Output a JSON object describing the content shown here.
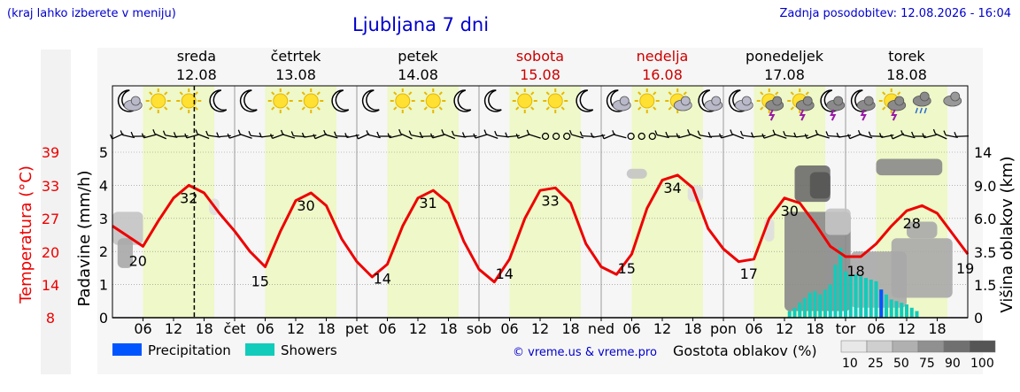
{
  "header": {
    "left_note": "(kraj lahko izberete v meniju)",
    "title": "Ljubljana 7 dni",
    "updated": "Zadnja posodobitev: 12.08.2026 - 16:04"
  },
  "colors": {
    "temperature": "#ee0000",
    "precipitation": "#0055ff",
    "showers": "#11ccbb",
    "day_band": "#eef8c8",
    "weekend_label": "#cc0000",
    "credit": "#0000cc"
  },
  "days": [
    {
      "name": "sreda",
      "date": "12.08",
      "abbr": "",
      "weekend": false
    },
    {
      "name": "četrtek",
      "date": "13.08",
      "abbr": "čet",
      "weekend": false
    },
    {
      "name": "petek",
      "date": "14.08",
      "abbr": "pet",
      "weekend": false
    },
    {
      "name": "sobota",
      "date": "15.08",
      "abbr": "sob",
      "weekend": true
    },
    {
      "name": "nedelja",
      "date": "16.08",
      "abbr": "ned",
      "weekend": true
    },
    {
      "name": "ponedeljek",
      "date": "17.08",
      "abbr": "pon",
      "weekend": false
    },
    {
      "name": "torek",
      "date": "18.08",
      "abbr": "tor",
      "weekend": false
    }
  ],
  "icons": [
    "moon-cloud-icon",
    "sun-icon",
    "sun-icon",
    "moon-icon",
    "moon-icon",
    "sun-icon",
    "sun-icon",
    "moon-icon",
    "moon-icon",
    "sun-icon",
    "sun-icon",
    "moon-icon",
    "moon-icon",
    "sun-icon",
    "sun-icon",
    "moon-icon",
    "moon-cloud-icon",
    "sun-icon",
    "sun-cloud-icon",
    "moon-cloud-icon",
    "moon-cloud-icon",
    "sun-storm-icon",
    "sun-storm-icon",
    "moon-storm-icon",
    "moon-storm-icon",
    "sun-storm-icon",
    "cloud-rain-icon",
    "cloud-icon"
  ],
  "wind_markers": [
    "barb",
    "barb",
    "barb",
    "barb",
    "barb",
    "barb",
    "barb",
    "barb",
    "barb",
    "barb",
    "barb",
    "barb",
    "barb",
    "barb",
    "barb",
    "barb",
    "barb",
    "barb",
    "barb",
    "barb",
    "barb",
    "barb",
    "barb",
    "barb",
    "barb",
    "barb",
    "barb",
    "barb",
    "barb",
    "barb",
    "barb",
    "barb",
    "barb",
    "barb",
    "barb",
    "barb",
    "barb",
    "barb",
    "barb",
    "barb",
    "calm",
    "calm",
    "calm",
    "barb",
    "barb",
    "barb",
    "barb",
    "barb",
    "calm",
    "calm",
    "calm",
    "barb",
    "barb",
    "barb",
    "barb",
    "barb",
    "barb",
    "barb",
    "barb",
    "barb",
    "barb",
    "barb",
    "barb",
    "barb",
    "barb",
    "barb",
    "barb",
    "barb",
    "barb",
    "barb",
    "barb",
    "barb",
    "barb",
    "barb",
    "barb",
    "barb",
    "barb",
    "barb",
    "barb",
    "barb"
  ],
  "chart_data": {
    "type": "line",
    "x_unit": "hours from 12.08 00:00",
    "xlim": [
      0,
      168
    ],
    "x_ticks": [
      6,
      12,
      18,
      24,
      30,
      36,
      42,
      48,
      54,
      60,
      66,
      72,
      78,
      84,
      90,
      96,
      102,
      108,
      114,
      120,
      126,
      132,
      138,
      144,
      150,
      156,
      162
    ],
    "x_tick_labels": [
      "06",
      "12",
      "18",
      "čet",
      "06",
      "12",
      "18",
      "pet",
      "06",
      "12",
      "18",
      "sob",
      "06",
      "12",
      "18",
      "ned",
      "06",
      "12",
      "18",
      "pon",
      "06",
      "12",
      "18",
      "tor",
      "06",
      "12",
      "18"
    ],
    "left_axis": {
      "label": "Padavine (mm/h)",
      "ylim": [
        0,
        5
      ],
      "ticks": [
        0,
        1,
        2,
        3,
        4,
        5
      ]
    },
    "temp_axis": {
      "label": "Temperatura (°C)",
      "ticks": [
        8,
        14,
        20,
        27,
        33,
        39
      ]
    },
    "right_axis": {
      "label": "Višina oblakov (km)",
      "ticks": [
        "0",
        "1.5",
        "3.5",
        "6.0",
        "9.0",
        "14"
      ]
    },
    "current_time_hours": 16.07,
    "series": [
      {
        "name": "Temperatura (°C)",
        "x": [
          0,
          3,
          6,
          9,
          12,
          15,
          18,
          21,
          24,
          27,
          30,
          33,
          36,
          39,
          42,
          45,
          48,
          51,
          54,
          57,
          60,
          63,
          66,
          69,
          72,
          75,
          78,
          81,
          84,
          87,
          90,
          93,
          96,
          99,
          102,
          105,
          108,
          111,
          114,
          117,
          120,
          123,
          126,
          129,
          132,
          135,
          138,
          141,
          144,
          147,
          150,
          153,
          156,
          159,
          162,
          165,
          168
        ],
        "values": [
          24.5,
          22.5,
          20.5,
          25.5,
          30,
          32.5,
          31,
          27,
          23.5,
          19.5,
          16.5,
          23.5,
          29.5,
          31,
          28.5,
          22,
          17.5,
          14.5,
          17,
          24.5,
          30,
          31.5,
          29,
          21.5,
          16,
          13.5,
          18,
          26,
          31.5,
          32,
          29,
          21,
          16.5,
          15,
          19,
          28,
          33.5,
          34.5,
          32,
          24,
          20,
          17.5,
          18,
          26,
          30,
          29,
          25,
          20.5,
          18.5,
          18.5,
          21,
          24.5,
          27.5,
          28.5,
          27,
          23,
          19
        ]
      }
    ],
    "temperature_labels": [
      {
        "x": 5,
        "value": "20"
      },
      {
        "x": 15,
        "value": "32"
      },
      {
        "x": 29,
        "value": "15"
      },
      {
        "x": 38,
        "value": "30"
      },
      {
        "x": 53,
        "value": "14"
      },
      {
        "x": 62,
        "value": "31"
      },
      {
        "x": 77,
        "value": "14"
      },
      {
        "x": 86,
        "value": "33"
      },
      {
        "x": 101,
        "value": "15"
      },
      {
        "x": 110,
        "value": "34"
      },
      {
        "x": 125,
        "value": "17"
      },
      {
        "x": 133,
        "value": "30"
      },
      {
        "x": 146,
        "value": "18"
      },
      {
        "x": 157,
        "value": "28"
      },
      {
        "x": 167.5,
        "value": "19"
      }
    ],
    "showers": {
      "x": [
        133,
        134,
        135,
        136,
        137,
        138,
        139,
        140,
        141,
        142,
        143,
        144,
        145,
        146,
        147,
        148,
        149,
        150,
        151,
        152,
        153,
        154,
        155,
        156,
        157,
        158
      ],
      "values": [
        0.2,
        0.3,
        0.45,
        0.6,
        0.75,
        0.8,
        0.7,
        0.85,
        1.0,
        1.6,
        2.1,
        1.4,
        1.3,
        1.3,
        1.25,
        1.2,
        1.15,
        1.1,
        0.85,
        0.7,
        0.55,
        0.5,
        0.45,
        0.4,
        0.3,
        0.2
      ]
    },
    "precipitation": {
      "x": [
        151
      ],
      "values": [
        0.85
      ]
    },
    "cloud_density": [
      {
        "x0": 0,
        "x1": 6,
        "y0": 2.2,
        "y1": 3.2,
        "density": 25
      },
      {
        "x0": 1,
        "x1": 4,
        "y0": 1.5,
        "y1": 2.4,
        "density": 50
      },
      {
        "x0": 19,
        "x1": 21,
        "y0": 3.1,
        "y1": 3.6,
        "density": 10
      },
      {
        "x0": 101,
        "x1": 105,
        "y0": 4.2,
        "y1": 4.5,
        "density": 25
      },
      {
        "x0": 113,
        "x1": 116,
        "y0": 3.5,
        "y1": 4.0,
        "density": 10
      },
      {
        "x0": 128,
        "x1": 130,
        "y0": 2.3,
        "y1": 3.0,
        "density": 10
      },
      {
        "x0": 132,
        "x1": 145,
        "y0": 0.2,
        "y1": 3.2,
        "density": 75
      },
      {
        "x0": 134,
        "x1": 141,
        "y0": 3.5,
        "y1": 4.6,
        "density": 90
      },
      {
        "x0": 137,
        "x1": 141,
        "y0": 3.6,
        "y1": 4.4,
        "density": 100
      },
      {
        "x0": 140,
        "x1": 145,
        "y0": 2.5,
        "y1": 3.3,
        "density": 25
      },
      {
        "x0": 145,
        "x1": 156,
        "y0": 0.3,
        "y1": 2.0,
        "density": 50
      },
      {
        "x0": 150,
        "x1": 163,
        "y0": 4.3,
        "y1": 4.8,
        "density": 75
      },
      {
        "x0": 153,
        "x1": 165,
        "y0": 0.6,
        "y1": 2.4,
        "density": 50
      },
      {
        "x0": 156,
        "x1": 162,
        "y0": 2.4,
        "y1": 2.9,
        "density": 50
      }
    ],
    "legend": [
      {
        "name": "Precipitation",
        "color": "#0055ff"
      },
      {
        "name": "Showers",
        "color": "#11ccbb"
      }
    ],
    "cloud_legend": {
      "title": "Gostota oblakov (%)",
      "levels": [
        "10",
        "25",
        "50",
        "75",
        "90",
        "100"
      ]
    },
    "credit": "© vreme.us & vreme.pro"
  }
}
